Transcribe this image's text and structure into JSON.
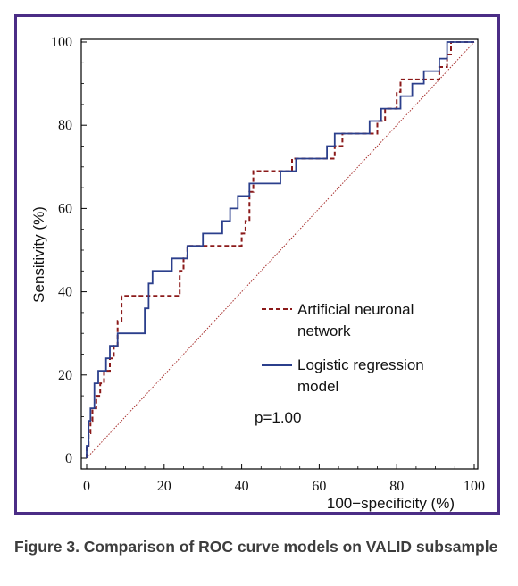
{
  "caption": "Figure 3. Comparison of ROC curve models on VALID subsample",
  "colors": {
    "frame": "#4b2d86",
    "ann": "#8b1a1a",
    "logistic": "#2b3f8c",
    "diagonal": "#a8312f"
  },
  "chart_data": {
    "type": "line",
    "xlabel": "100−specificity (%)",
    "ylabel": "Sensitivity (%)",
    "xlim": [
      0,
      100
    ],
    "ylim": [
      0,
      100
    ],
    "xticks": [
      "0",
      "20",
      "40",
      "60",
      "80",
      "100"
    ],
    "yticks": [
      "0",
      "20",
      "40",
      "60",
      "80",
      "100"
    ],
    "annotation": "p=1.00",
    "legend_position": "bottom-right",
    "series": [
      {
        "name": "Artificial neuronal network",
        "style": "dashed",
        "color": "#8b1a1a",
        "x": [
          0,
          0,
          0.5,
          0.5,
          1,
          1,
          1.5,
          1.5,
          2.5,
          2.5,
          3.5,
          3.5,
          4.5,
          4.5,
          6,
          6,
          7,
          7,
          8,
          8,
          9,
          9,
          24,
          24,
          25,
          25,
          26,
          26,
          28,
          28,
          40,
          40,
          41,
          41,
          42,
          42,
          43,
          43,
          53,
          53,
          55,
          55,
          64,
          64,
          66,
          66,
          73,
          73,
          75,
          75,
          77,
          77,
          79,
          79,
          80,
          80,
          81,
          81,
          86,
          86,
          88,
          88,
          91,
          91,
          93,
          93,
          94,
          94,
          100
        ],
        "y": [
          0,
          3,
          3,
          6,
          6,
          9,
          9,
          12,
          12,
          15,
          15,
          18,
          18,
          21,
          21,
          24,
          24,
          27,
          27,
          33,
          33,
          39,
          39,
          45,
          45,
          48,
          48,
          51,
          51,
          51,
          51,
          54,
          54,
          57,
          57,
          64,
          64,
          69,
          69,
          72,
          72,
          72,
          72,
          75,
          75,
          78,
          78,
          78,
          78,
          81,
          81,
          84,
          84,
          84,
          84,
          88,
          88,
          91,
          91,
          91,
          91,
          91,
          91,
          94,
          94,
          97,
          97,
          100,
          100
        ]
      },
      {
        "name": "Logistic regression model",
        "style": "solid",
        "color": "#2b3f8c",
        "x": [
          0,
          0,
          0.5,
          0.5,
          1,
          1,
          2,
          2,
          3,
          3,
          5,
          5,
          6,
          6,
          8,
          8,
          9,
          9,
          15,
          15,
          16,
          16,
          17,
          17,
          22,
          22,
          26,
          26,
          30,
          30,
          35,
          35,
          37,
          37,
          39,
          39,
          42,
          42,
          50,
          50,
          52,
          52,
          54,
          54,
          62,
          62,
          64,
          64,
          66,
          66,
          73,
          73,
          75,
          75,
          76,
          76,
          78,
          78,
          81,
          81,
          83,
          83,
          84,
          84,
          87,
          87,
          90,
          90,
          91,
          91,
          92,
          92,
          93,
          93,
          100
        ],
        "y": [
          0,
          3,
          3,
          9,
          9,
          12,
          12,
          18,
          18,
          21,
          21,
          24,
          24,
          27,
          27,
          30,
          30,
          30,
          30,
          36,
          36,
          42,
          42,
          45,
          45,
          48,
          48,
          51,
          51,
          54,
          54,
          57,
          57,
          60,
          60,
          63,
          63,
          66,
          66,
          69,
          69,
          69,
          69,
          72,
          72,
          75,
          75,
          78,
          78,
          78,
          78,
          81,
          81,
          81,
          81,
          84,
          84,
          84,
          84,
          87,
          87,
          87,
          87,
          90,
          90,
          93,
          93,
          93,
          93,
          96,
          96,
          96,
          96,
          100,
          100
        ]
      },
      {
        "name": "",
        "style": "dotted",
        "color": "#a8312f",
        "x": [
          0,
          100
        ],
        "y": [
          0,
          100
        ]
      }
    ]
  }
}
